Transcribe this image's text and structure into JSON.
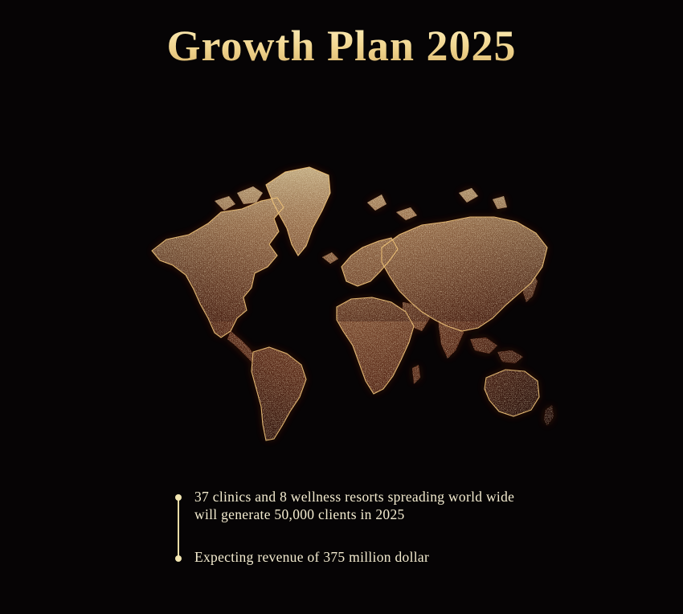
{
  "title": "Growth Plan 2025",
  "map": {
    "icon": "world-map-icon",
    "colors": {
      "dot_light": "#f2e1a8",
      "dot_mid": "#c8a064",
      "glow": "#b5300c"
    }
  },
  "timeline": {
    "items": [
      {
        "line1": "37 clinics and 8 wellness resorts spreading world wide",
        "line2": "will generate 50,000 clients in 2025"
      },
      {
        "line1": "Expecting revenue of 375 million dollar"
      }
    ]
  },
  "colors": {
    "background": "#060405",
    "title_gold": "#f3dc9c",
    "text_cream": "#f4ecd0"
  }
}
